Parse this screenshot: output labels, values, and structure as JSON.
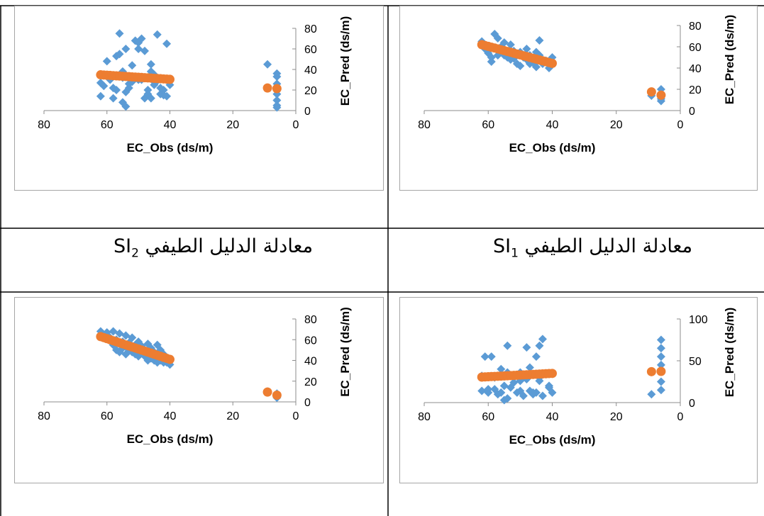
{
  "captions": {
    "left": {
      "base": "معادلة الدليل الطيفي ",
      "sym": "SI",
      "sub": "2"
    },
    "right": {
      "base": "معادلة الدليل الطيفي ",
      "sym": "SI",
      "sub": "1"
    }
  },
  "chart_data": [
    {
      "id": "top-left",
      "type": "scatter",
      "xlabel": "EC_Obs (ds/m)",
      "ylabel": "EC_Pred (ds/m)",
      "xlim": [
        0,
        80
      ],
      "ylim": [
        0,
        80
      ],
      "x_reversed": true,
      "xticks": [
        80,
        60,
        40,
        20,
        0
      ],
      "yticks": [
        0,
        20,
        40,
        60,
        80
      ],
      "series": [
        {
          "marker": "diamond",
          "color": "#5b9bd5",
          "x": [
            62,
            60,
            58,
            57,
            56,
            55,
            55,
            54,
            54,
            53,
            52,
            51,
            50,
            50,
            49,
            48,
            47,
            46,
            46,
            45,
            45,
            44,
            43,
            42,
            41,
            41,
            62,
            61,
            59,
            58,
            57,
            56,
            55,
            54,
            53,
            52,
            50,
            49,
            48,
            47,
            46,
            45,
            44,
            43,
            42,
            41,
            40,
            9,
            6,
            6,
            6,
            6,
            6,
            6,
            6,
            6
          ],
          "y": [
            14,
            48,
            12,
            53,
            75,
            8,
            38,
            60,
            18,
            22,
            44,
            68,
            66,
            30,
            70,
            58,
            20,
            45,
            12,
            25,
            28,
            74,
            16,
            20,
            14,
            65,
            27,
            24,
            30,
            22,
            20,
            55,
            32,
            4,
            26,
            28,
            60,
            30,
            12,
            16,
            38,
            35,
            29,
            22,
            15,
            30,
            25,
            45,
            20,
            10,
            33,
            36,
            3,
            16,
            5,
            26
          ]
        },
        {
          "marker": "circle",
          "color": "#ed7d31",
          "note": "regression",
          "x": [
            62,
            61,
            60,
            59,
            58,
            57,
            56,
            55,
            54,
            53,
            52,
            51,
            50,
            49,
            48,
            47,
            46,
            45,
            44,
            43,
            42,
            41,
            40,
            9,
            6
          ],
          "y": [
            34.8,
            34.6,
            34.4,
            34.2,
            34.0,
            33.8,
            33.6,
            33.4,
            33.2,
            33.0,
            32.8,
            32.6,
            32.4,
            32.2,
            32.0,
            31.8,
            31.6,
            31.4,
            31.2,
            31.0,
            30.8,
            30.6,
            30.4,
            22.0,
            21.4
          ]
        }
      ]
    },
    {
      "id": "top-right",
      "type": "scatter",
      "xlabel": "EC_Obs (ds/m)",
      "ylabel": "EC_Pred (ds/m)",
      "xlim": [
        0,
        80
      ],
      "ylim": [
        0,
        80
      ],
      "x_reversed": true,
      "xticks": [
        80,
        60,
        40,
        20,
        0
      ],
      "yticks": [
        0,
        20,
        40,
        60,
        80
      ],
      "series": [
        {
          "marker": "diamond",
          "color": "#5b9bd5",
          "x": [
            62,
            61,
            60,
            59,
            58,
            57,
            56,
            55,
            55,
            54,
            53,
            53,
            52,
            51,
            50,
            50,
            49,
            48,
            47,
            47,
            46,
            45,
            45,
            44,
            44,
            43,
            42,
            41,
            40,
            59,
            57,
            55,
            52,
            50,
            48,
            46,
            44,
            42,
            9,
            6,
            6,
            6
          ],
          "y": [
            65,
            58,
            54,
            46,
            72,
            68,
            60,
            52,
            64,
            50,
            48,
            62,
            56,
            44,
            55,
            42,
            50,
            58,
            44,
            52,
            46,
            41,
            55,
            66,
            49,
            44,
            47,
            40,
            50,
            50,
            52,
            56,
            49,
            53,
            48,
            45,
            52,
            46,
            14,
            20,
            11,
            9
          ]
        },
        {
          "marker": "circle",
          "color": "#ed7d31",
          "note": "regression",
          "x": [
            62,
            61,
            60,
            59,
            58,
            57,
            56,
            55,
            54,
            53,
            52,
            51,
            50,
            49,
            48,
            47,
            46,
            45,
            44,
            43,
            42,
            41,
            40,
            9,
            6
          ],
          "y": [
            62,
            61.2,
            60.4,
            59.6,
            58.8,
            58,
            57.2,
            56.4,
            55.6,
            54.8,
            54,
            53.2,
            52.4,
            51.6,
            50.8,
            50,
            49.2,
            48.4,
            47.6,
            46.8,
            46,
            45.2,
            44.4,
            17.6,
            14.5
          ]
        }
      ]
    },
    {
      "id": "bottom-left",
      "type": "scatter",
      "xlabel": "EC_Obs (ds/m)",
      "ylabel": "EC_Pred (ds/m)",
      "xlim": [
        0,
        80
      ],
      "ylim": [
        0,
        80
      ],
      "x_reversed": true,
      "xticks": [
        80,
        60,
        40,
        20,
        0
      ],
      "yticks": [
        0,
        20,
        40,
        60,
        80
      ],
      "series": [
        {
          "marker": "diamond",
          "color": "#5b9bd5",
          "x": [
            62,
            61,
            60,
            59,
            58,
            58,
            57,
            57,
            56,
            56,
            55,
            55,
            54,
            54,
            53,
            53,
            52,
            52,
            51,
            51,
            50,
            50,
            49,
            49,
            48,
            48,
            47,
            47,
            46,
            46,
            45,
            45,
            44,
            44,
            43,
            43,
            42,
            42,
            41,
            40,
            9,
            6,
            6,
            6
          ],
          "y": [
            68,
            65,
            67,
            62,
            68,
            55,
            60,
            50,
            66,
            48,
            58,
            52,
            64,
            46,
            57,
            50,
            62,
            48,
            55,
            46,
            58,
            44,
            54,
            48,
            50,
            44,
            56,
            40,
            52,
            42,
            48,
            40,
            55,
            38,
            50,
            40,
            46,
            38,
            38,
            36,
            10,
            8,
            6,
            4
          ]
        },
        {
          "marker": "circle",
          "color": "#ed7d31",
          "note": "regression",
          "x": [
            62,
            61,
            60,
            59,
            58,
            57,
            56,
            55,
            54,
            53,
            52,
            51,
            50,
            49,
            48,
            47,
            46,
            45,
            44,
            43,
            42,
            41,
            40,
            9,
            6
          ],
          "y": [
            63,
            62,
            61,
            60,
            59,
            58,
            57,
            56,
            55,
            54,
            53,
            52,
            51,
            50,
            49,
            48,
            47,
            46,
            45,
            44,
            43,
            42,
            41,
            9.5,
            6.5
          ]
        }
      ]
    },
    {
      "id": "bottom-right",
      "type": "scatter",
      "xlabel": "EC_Obs (ds/m)",
      "ylabel": "EC_Pred (ds/m)",
      "xlim": [
        0,
        80
      ],
      "ylim": [
        0,
        100
      ],
      "x_reversed": true,
      "xticks": [
        80,
        60,
        40,
        20,
        0
      ],
      "yticks": [
        0,
        50,
        100
      ],
      "series": [
        {
          "marker": "diamond",
          "color": "#5b9bd5",
          "x": [
            62,
            61,
            60,
            59,
            58,
            57,
            56,
            55,
            55,
            54,
            54,
            53,
            52,
            51,
            50,
            50,
            49,
            48,
            47,
            47,
            46,
            45,
            45,
            44,
            44,
            43,
            43,
            42,
            41,
            41,
            40,
            62,
            60,
            58,
            56,
            54,
            52,
            50,
            48,
            46,
            44,
            42,
            9,
            6,
            6,
            6,
            6,
            6,
            6
          ],
          "y": [
            14,
            55,
            12,
            55,
            16,
            10,
            40,
            3,
            20,
            68,
            5,
            18,
            30,
            12,
            26,
            36,
            8,
            66,
            14,
            42,
            10,
            55,
            12,
            68,
            30,
            76,
            8,
            35,
            18,
            20,
            12,
            32,
            16,
            30,
            12,
            36,
            24,
            14,
            28,
            12,
            26,
            34,
            10,
            75,
            65,
            55,
            45,
            15,
            25
          ]
        },
        {
          "marker": "circle",
          "color": "#ed7d31",
          "note": "regression",
          "x": [
            62,
            61,
            60,
            59,
            58,
            57,
            56,
            55,
            54,
            53,
            52,
            51,
            50,
            49,
            48,
            47,
            46,
            45,
            44,
            43,
            42,
            41,
            40,
            9,
            6
          ],
          "y": [
            30.5,
            30.7,
            30.9,
            31.1,
            31.3,
            31.5,
            31.7,
            31.9,
            32.1,
            32.3,
            32.5,
            32.7,
            32.9,
            33.1,
            33.3,
            33.5,
            33.7,
            33.9,
            34.1,
            34.3,
            34.5,
            34.7,
            34.9,
            37,
            37.3
          ]
        }
      ]
    }
  ]
}
